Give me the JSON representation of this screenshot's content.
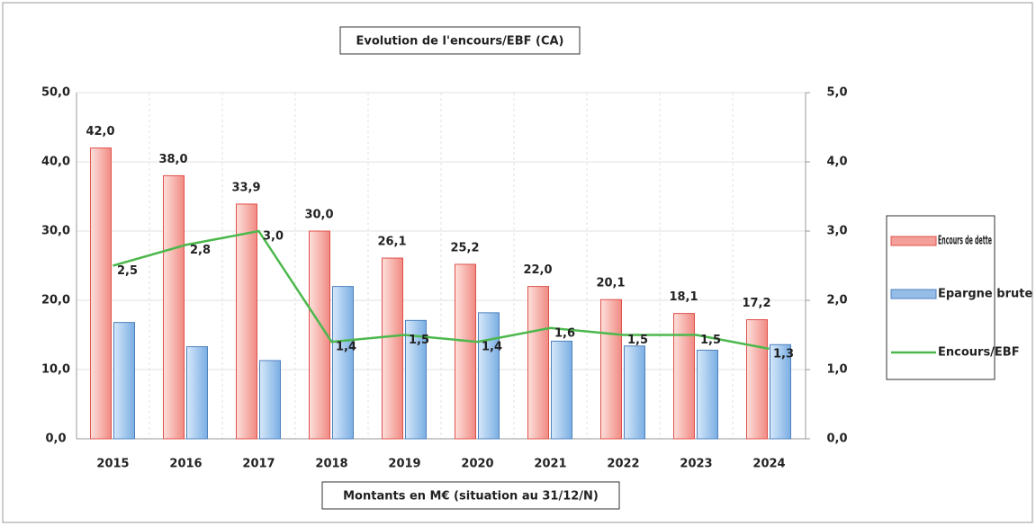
{
  "chart_data": {
    "type": "bar_line",
    "title": "Evolution de l'encours/EBF (CA)",
    "xlabel": "Montants en M€ (situation au 31/12/N)",
    "categories": [
      "2015",
      "2016",
      "2017",
      "2018",
      "2019",
      "2020",
      "2021",
      "2022",
      "2023",
      "2024"
    ],
    "series": [
      {
        "name": "Encours de dette",
        "type": "bar",
        "color": "#f4a09a",
        "values": [
          42.0,
          38.0,
          33.9,
          30.0,
          26.1,
          25.2,
          22.0,
          20.1,
          18.1,
          17.2
        ],
        "value_labels": [
          "42,0",
          "38,0",
          "33,9",
          "30,0",
          "26,1",
          "25,2",
          "22,0",
          "20,1",
          "18,1",
          "17,2"
        ]
      },
      {
        "name": "Epargne brute",
        "type": "bar",
        "color": "#95bde8",
        "values": [
          16.8,
          13.3,
          11.3,
          22.0,
          17.1,
          18.2,
          14.1,
          13.4,
          12.8,
          13.6
        ]
      },
      {
        "name": "Encours/EBF",
        "type": "line",
        "axis": "y2",
        "color": "#4cb84c",
        "values": [
          2.5,
          2.8,
          3.0,
          1.4,
          1.5,
          1.4,
          1.6,
          1.5,
          1.5,
          1.3
        ],
        "value_labels": [
          "2,5",
          "2,8",
          "3,0",
          "1,4",
          "1,5",
          "1,4",
          "1,6",
          "1,5",
          "1,5",
          "1,3"
        ]
      }
    ],
    "ylim": [
      0,
      50
    ],
    "yticks": [
      {
        "value": 0,
        "label": "0,0"
      },
      {
        "value": 10,
        "label": "10,0"
      },
      {
        "value": 20,
        "label": "20,0"
      },
      {
        "value": 30,
        "label": "30,0"
      },
      {
        "value": 40,
        "label": "40,0"
      },
      {
        "value": 50,
        "label": "50,0"
      }
    ],
    "y2lim": [
      0,
      5
    ],
    "y2ticks": [
      {
        "value": 0,
        "label": "0,0"
      },
      {
        "value": 1,
        "label": "1,0"
      },
      {
        "value": 2,
        "label": "2,0"
      },
      {
        "value": 3,
        "label": "3,0"
      },
      {
        "value": 4,
        "label": "4,0"
      },
      {
        "value": 5,
        "label": "5,0"
      }
    ],
    "grid": true,
    "legend": "right"
  }
}
